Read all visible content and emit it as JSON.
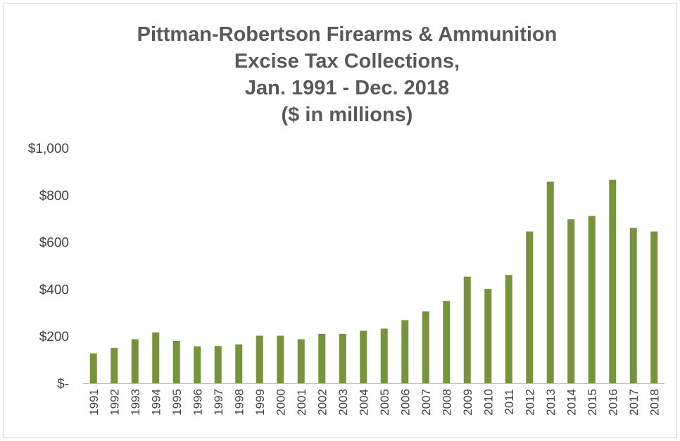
{
  "chart_data": {
    "type": "bar",
    "title_lines": [
      "Pittman-Robertson Firearms & Ammunition",
      "Excise Tax Collections,",
      "Jan. 1991 - Dec. 2018",
      "($ in millions)"
    ],
    "categories": [
      "1991",
      "1992",
      "1993",
      "1994",
      "1995",
      "1996",
      "1997",
      "1998",
      "1999",
      "2000",
      "2001",
      "2002",
      "2003",
      "2004",
      "2005",
      "2006",
      "2007",
      "2008",
      "2009",
      "2010",
      "2011",
      "2012",
      "2013",
      "2014",
      "2015",
      "2016",
      "2017",
      "2018"
    ],
    "values": [
      127,
      150,
      187,
      216,
      180,
      157,
      158,
      165,
      202,
      202,
      187,
      210,
      210,
      223,
      232,
      268,
      305,
      350,
      453,
      401,
      460,
      645,
      857,
      697,
      711,
      865,
      660,
      645
    ],
    "ytick_labels": [
      "$-",
      "$200",
      "$400",
      "$600",
      "$800",
      "$1,000"
    ],
    "ytick_values": [
      0,
      200,
      400,
      600,
      800,
      1000
    ],
    "ylim": [
      0,
      1000
    ],
    "bar_color": "#77933c",
    "axis_color": "#bfbfbf",
    "grid": false,
    "legend": "none"
  }
}
